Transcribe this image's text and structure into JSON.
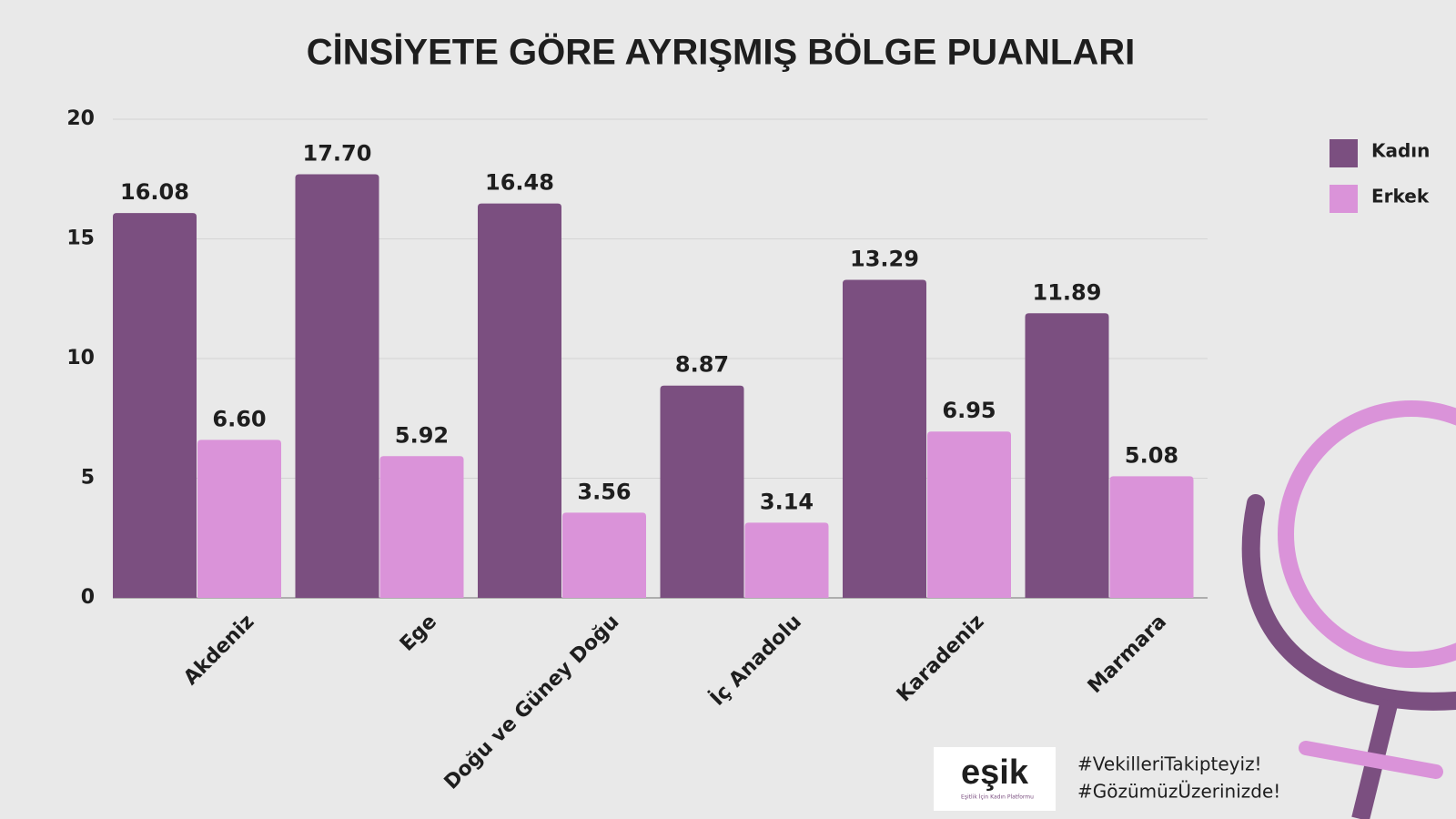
{
  "chart_data": {
    "type": "bar",
    "title": "CİNSİYETE GÖRE AYRIŞMIŞ BÖLGE PUANLARI",
    "categories": [
      "Akdeniz",
      "Ege",
      "Doğu ve Güney Doğu",
      "İç Anadolu",
      "Karadeniz",
      "Marmara"
    ],
    "series": [
      {
        "name": "Kadın",
        "color": "#7b4f80",
        "values": [
          16.08,
          17.7,
          16.48,
          8.87,
          13.29,
          11.89
        ],
        "value_labels": [
          "16.08",
          "17.70",
          "16.48",
          "8.87",
          "13.29",
          "11.89"
        ]
      },
      {
        "name": "Erkek",
        "color": "#da93d9",
        "values": [
          6.6,
          5.92,
          3.56,
          3.14,
          6.95,
          5.08
        ],
        "value_labels": [
          "6.60",
          "5.92",
          "3.56",
          "3.14",
          "6.95",
          "5.08"
        ]
      }
    ],
    "ylim": [
      0,
      20
    ],
    "yticks": [
      0,
      5,
      10,
      15,
      20
    ],
    "grid": true,
    "legend": "right"
  },
  "branding": {
    "logo": "eşik",
    "logo_subtitle": "Eşitlik İçin Kadın Platformu",
    "hashtags": [
      "#VekilleriTakipteyiz!",
      "#GözümüzÜzerinizde!"
    ]
  }
}
